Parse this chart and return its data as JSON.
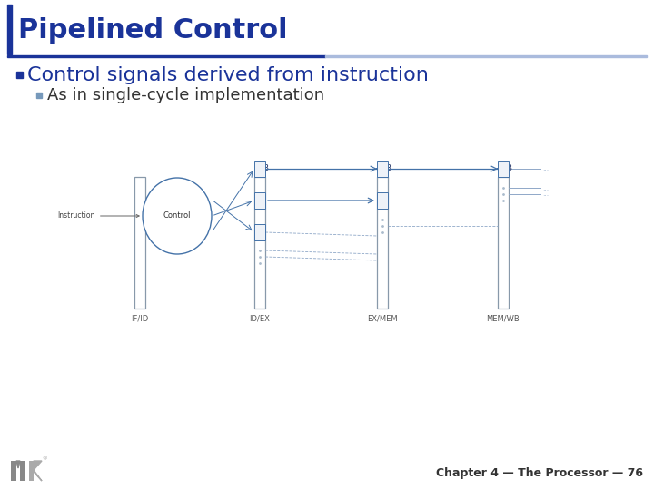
{
  "title": "Pipelined Control",
  "bullet1": "Control signals derived from instruction",
  "bullet2": "As in single-cycle implementation",
  "footer": "Chapter 4 — The Processor — 76",
  "title_color": "#1a3399",
  "title_fontsize": 22,
  "bullet1_fontsize": 16,
  "bullet2_fontsize": 13,
  "footer_fontsize": 9,
  "bg_color": "#ffffff",
  "diagram_blue": "#4472a8",
  "diagram_light": "#8fa8c8",
  "label_fontsize": 6.5
}
